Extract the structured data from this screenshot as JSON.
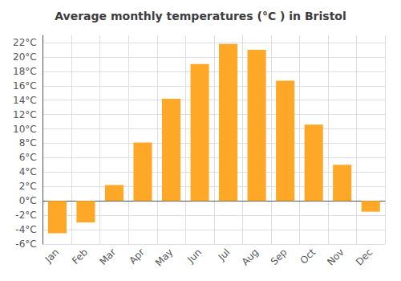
{
  "chart_data": {
    "type": "bar",
    "title": "Average monthly temperatures (°C ) in Bristol",
    "categories": [
      "Jan",
      "Feb",
      "Mar",
      "Apr",
      "May",
      "Jun",
      "Jul",
      "Aug",
      "Sep",
      "Oct",
      "Nov",
      "Dec"
    ],
    "values": [
      -4.5,
      -3.0,
      2.2,
      8.1,
      14.2,
      19.0,
      21.8,
      21.0,
      16.7,
      10.6,
      5.0,
      -1.5
    ],
    "color": "#FFA726",
    "ylim": [
      -6,
      23
    ],
    "yticks": [
      {
        "value": -6,
        "label": "-6°C"
      },
      {
        "value": -4,
        "label": "-4°C"
      },
      {
        "value": -2,
        "label": "-2°C"
      },
      {
        "value": 0,
        "label": "0°C"
      },
      {
        "value": 2,
        "label": "2°C"
      },
      {
        "value": 4,
        "label": "4°C"
      },
      {
        "value": 6,
        "label": "6°C"
      },
      {
        "value": 8,
        "label": "8°C"
      },
      {
        "value": 10,
        "label": "10°C"
      },
      {
        "value": 12,
        "label": "12°C"
      },
      {
        "value": 14,
        "label": "14°C"
      },
      {
        "value": 16,
        "label": "16°C"
      },
      {
        "value": 18,
        "label": "18°C"
      },
      {
        "value": 20,
        "label": "20°C"
      },
      {
        "value": 22,
        "label": "22°C"
      }
    ],
    "grid": true
  }
}
